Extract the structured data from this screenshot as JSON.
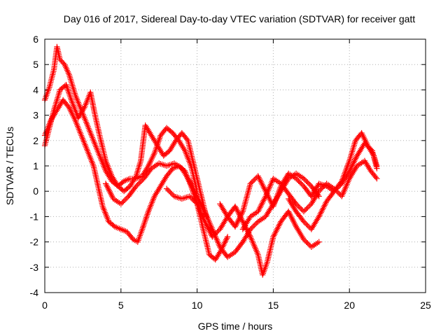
{
  "chart_data": {
    "type": "scatter",
    "title": "Day 016 of 2017, Sidereal Day-to-day VTEC variation (SDTVAR) for receiver gatt",
    "xlabel": "GPS time / hours",
    "ylabel": "SDTVAR / TECUs",
    "xlim": [
      0,
      25
    ],
    "ylim": [
      -4,
      6
    ],
    "xticks": [
      "0",
      "5",
      "10",
      "15",
      "20",
      "25"
    ],
    "yticks": [
      "-4",
      "-3",
      "-2",
      "-1",
      "0",
      "1",
      "2",
      "3",
      "4",
      "5",
      "6"
    ],
    "grid": true,
    "marker": "plus",
    "color": "#ff0000",
    "series": [
      {
        "x": [
          0.0,
          0.3,
          0.6,
          0.8,
          1.0,
          1.3,
          1.6,
          2.0,
          2.4,
          2.8,
          3.2,
          3.6,
          4.0,
          4.4,
          4.8,
          5.2,
          5.6,
          6.0,
          6.4,
          6.8,
          7.2,
          7.6,
          8.0,
          8.4,
          8.8,
          9.2,
          9.6,
          10.0
        ],
        "y": [
          3.6,
          4.1,
          4.8,
          5.7,
          5.2,
          5.0,
          4.6,
          3.8,
          3.2,
          2.6,
          2.0,
          1.4,
          0.8,
          0.4,
          0.2,
          0.4,
          0.5,
          0.5,
          0.6,
          1.0,
          1.5,
          2.2,
          2.5,
          2.3,
          2.0,
          1.6,
          1.0,
          0.0
        ]
      },
      {
        "x": [
          0.0,
          0.3,
          0.6,
          1.0,
          1.4,
          1.8,
          2.2,
          2.6,
          3.0,
          3.3,
          3.6,
          4.0,
          4.4,
          4.8,
          5.2,
          5.6,
          6.0,
          6.3,
          6.6,
          7.0,
          7.4,
          7.8,
          8.2,
          8.6,
          9.0,
          9.4,
          9.8,
          10.2,
          10.6
        ],
        "y": [
          1.8,
          2.5,
          3.2,
          4.0,
          4.2,
          3.5,
          2.9,
          3.3,
          3.9,
          3.0,
          2.2,
          1.2,
          0.6,
          0.2,
          0.0,
          0.2,
          0.6,
          1.2,
          2.6,
          2.2,
          1.8,
          1.4,
          1.6,
          2.0,
          2.3,
          2.0,
          1.0,
          0.0,
          -1.0
        ]
      },
      {
        "x": [
          0.0,
          0.4,
          0.8,
          1.2,
          1.6,
          2.0,
          2.4,
          2.8,
          3.2,
          3.5,
          3.8,
          4.2,
          4.6,
          5.0,
          5.4,
          5.8,
          6.1,
          6.4,
          6.8,
          7.2,
          7.6,
          8.0,
          8.4,
          8.8,
          9.2,
          9.6,
          10.0,
          10.4,
          10.8,
          11.2,
          11.6,
          12.0
        ],
        "y": [
          2.2,
          2.8,
          3.2,
          3.6,
          3.3,
          2.8,
          2.2,
          1.6,
          1.0,
          0.2,
          -0.6,
          -1.2,
          -1.4,
          -1.5,
          -1.6,
          -1.9,
          -2.0,
          -1.5,
          -0.8,
          -0.2,
          0.2,
          0.6,
          0.9,
          1.0,
          0.8,
          0.2,
          -0.5,
          -1.5,
          -2.5,
          -2.7,
          -2.3,
          -1.8
        ]
      },
      {
        "x": [
          4.0,
          4.5,
          5.0,
          5.5,
          6.0,
          6.5,
          7.0,
          7.5,
          8.0,
          8.5,
          9.0,
          9.5,
          10.0,
          10.5,
          11.0,
          11.5,
          12.0,
          12.5,
          13.0,
          13.5,
          14.0,
          14.5,
          15.0,
          15.5,
          16.0,
          16.5,
          17.0,
          17.5,
          18.0
        ],
        "y": [
          0.3,
          -0.3,
          -0.5,
          -0.2,
          0.2,
          0.5,
          0.9,
          1.1,
          1.0,
          1.1,
          0.9,
          0.4,
          -0.2,
          -0.8,
          -1.5,
          -2.2,
          -2.6,
          -2.4,
          -2.0,
          -1.5,
          -1.2,
          -1.0,
          -0.5,
          0.0,
          0.5,
          0.7,
          0.5,
          0.2,
          -0.2
        ]
      },
      {
        "x": [
          8.0,
          8.5,
          9.0,
          9.5,
          10.0,
          10.5,
          11.0,
          11.5,
          12.0,
          12.5,
          13.0,
          13.5,
          14.0,
          14.3,
          14.6,
          15.0,
          15.5,
          16.0,
          16.5,
          17.0,
          17.5,
          18.0
        ],
        "y": [
          0.1,
          -0.2,
          -0.3,
          -0.2,
          -0.5,
          -1.2,
          -1.8,
          -1.5,
          -1.0,
          -0.6,
          -1.2,
          -1.8,
          -2.5,
          -3.3,
          -2.8,
          -1.8,
          -1.2,
          -0.8,
          -1.4,
          -1.9,
          -2.2,
          -2.0
        ]
      },
      {
        "x": [
          11.5,
          12.0,
          12.5,
          13.0,
          13.5,
          14.0,
          14.5,
          15.0,
          15.5,
          16.0,
          16.5,
          17.0,
          17.5,
          18.0,
          18.5,
          19.0,
          19.5,
          20.0,
          20.4,
          20.8,
          21.2,
          21.6,
          21.8
        ],
        "y": [
          -0.5,
          -1.0,
          -1.4,
          -0.8,
          0.3,
          0.6,
          0.0,
          -0.6,
          0.2,
          0.7,
          0.5,
          0.2,
          -0.2,
          0.3,
          0.2,
          0.0,
          0.4,
          1.2,
          2.0,
          2.3,
          1.8,
          1.4,
          1.0
        ]
      },
      {
        "x": [
          13.0,
          13.5,
          14.0,
          14.5,
          15.0,
          15.5,
          16.0,
          16.5,
          17.0,
          17.5,
          18.0,
          18.5,
          19.0,
          19.5,
          20.0,
          20.5,
          21.0,
          21.4,
          21.8
        ],
        "y": [
          -1.5,
          -1.0,
          -0.8,
          -0.2,
          0.5,
          0.3,
          -0.1,
          -0.5,
          -0.8,
          -0.5,
          0.0,
          0.3,
          0.1,
          -0.2,
          0.5,
          1.0,
          1.2,
          0.8,
          0.5
        ]
      },
      {
        "x": [
          16.0,
          16.5,
          17.0,
          17.5,
          18.0,
          18.5,
          19.0,
          19.5,
          20.0,
          20.5,
          21.0,
          21.5,
          21.8
        ],
        "y": [
          -0.3,
          -0.8,
          -1.2,
          -1.5,
          -1.0,
          -0.4,
          0.0,
          0.3,
          0.8,
          1.4,
          1.9,
          1.6,
          0.9
        ]
      }
    ]
  }
}
